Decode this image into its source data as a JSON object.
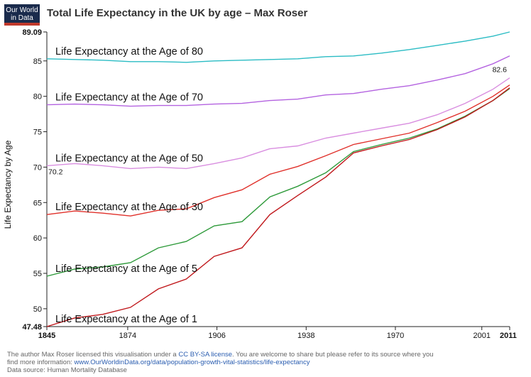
{
  "header": {
    "logo_line1": "Our World",
    "logo_line2": "in Data",
    "title": "Total Life Expectancy in the UK by age – Max Roser"
  },
  "footer": {
    "line1_prefix": "The author Max Roser licensed this visualisation under a ",
    "license_link": "CC BY-SA license",
    "line1_suffix": ". You are welcome to share but please refer to its source where you",
    "line2_prefix": "find more information: ",
    "source_link": "www.OurWorldinData.org/data/population-growth-vital-statistics/life-expectancy",
    "line3": "Data source: Human Mortality Database"
  },
  "colors": {
    "age80": "#2bbcc4",
    "age70": "#b463e0",
    "age50": "#d98ee0",
    "age30": "#e0302a",
    "age5": "#2e9a3a",
    "age1": "#c0181c"
  },
  "chart_data": {
    "type": "line",
    "title": "Total Life Expectancy in the UK by age – Max Roser",
    "xlabel": "",
    "ylabel": "Life Expectancy by Age",
    "xlim": [
      1845,
      2011
    ],
    "ylim": [
      47.48,
      89.09
    ],
    "x_ticks": [
      "1845",
      "1874",
      "1906",
      "1938",
      "1970",
      "2001",
      "2011"
    ],
    "y_ticks": [
      "47.48",
      "50",
      "55",
      "60",
      "65",
      "70",
      "75",
      "80",
      "85",
      "89.09"
    ],
    "grid": false,
    "annotations": [
      {
        "text": "82.6",
        "x": 2011,
        "y": 82.6
      },
      {
        "text": "70.2",
        "x": 1845,
        "y": 70.2
      }
    ],
    "series": [
      {
        "name": "Life Expectancy at the Age of 80",
        "color_key": "age80",
        "x": [
          1845,
          1855,
          1865,
          1875,
          1885,
          1895,
          1905,
          1915,
          1925,
          1935,
          1945,
          1955,
          1965,
          1975,
          1985,
          1995,
          2005,
          2011
        ],
        "y": [
          85.3,
          85.2,
          85.1,
          84.9,
          84.9,
          84.8,
          85.0,
          85.1,
          85.2,
          85.3,
          85.6,
          85.7,
          86.1,
          86.6,
          87.2,
          87.8,
          88.5,
          89.09
        ]
      },
      {
        "name": "Life Expectancy at the Age of 70",
        "color_key": "age70",
        "x": [
          1845,
          1855,
          1865,
          1875,
          1885,
          1895,
          1905,
          1915,
          1925,
          1935,
          1945,
          1955,
          1965,
          1975,
          1985,
          1995,
          2005,
          2011
        ],
        "y": [
          78.8,
          78.9,
          78.8,
          78.6,
          78.7,
          78.7,
          78.9,
          79.0,
          79.4,
          79.6,
          80.2,
          80.4,
          81.0,
          81.5,
          82.3,
          83.2,
          84.6,
          85.7
        ]
      },
      {
        "name": "Life Expectancy at the Age of 50",
        "color_key": "age50",
        "x": [
          1845,
          1855,
          1865,
          1875,
          1885,
          1895,
          1905,
          1915,
          1925,
          1935,
          1945,
          1955,
          1965,
          1975,
          1985,
          1995,
          2005,
          2011
        ],
        "y": [
          70.2,
          70.5,
          70.2,
          69.8,
          70.0,
          69.8,
          70.5,
          71.3,
          72.6,
          73.0,
          74.1,
          74.8,
          75.5,
          76.2,
          77.4,
          79.0,
          81.0,
          82.6
        ]
      },
      {
        "name": "Life Expectancy at the Age of 30",
        "color_key": "age30",
        "x": [
          1845,
          1855,
          1865,
          1875,
          1885,
          1895,
          1905,
          1915,
          1925,
          1935,
          1945,
          1955,
          1965,
          1975,
          1985,
          1995,
          2005,
          2011
        ],
        "y": [
          63.3,
          63.8,
          63.5,
          63.1,
          63.9,
          64.1,
          65.7,
          66.8,
          69.0,
          70.1,
          71.6,
          73.2,
          74.0,
          74.8,
          76.3,
          77.9,
          80.0,
          81.6
        ]
      },
      {
        "name": "Life Expectancy at the Age of 5",
        "color_key": "age5",
        "x": [
          1845,
          1855,
          1865,
          1875,
          1885,
          1895,
          1905,
          1915,
          1925,
          1935,
          1945,
          1955,
          1965,
          1975,
          1985,
          1995,
          2005,
          2011
        ],
        "y": [
          54.6,
          55.6,
          55.9,
          56.5,
          58.6,
          59.5,
          61.7,
          62.3,
          65.8,
          67.3,
          69.2,
          72.2,
          73.2,
          74.1,
          75.4,
          77.2,
          79.4,
          81.1
        ]
      },
      {
        "name": "Life Expectancy at the Age of 1",
        "color_key": "age1",
        "x": [
          1845,
          1855,
          1865,
          1875,
          1885,
          1895,
          1905,
          1915,
          1925,
          1935,
          1945,
          1955,
          1965,
          1975,
          1985,
          1995,
          2005,
          2011
        ],
        "y": [
          47.48,
          48.7,
          49.2,
          50.2,
          52.8,
          54.2,
          57.4,
          58.6,
          63.3,
          66.0,
          68.6,
          72.0,
          73.0,
          73.9,
          75.3,
          77.1,
          79.4,
          81.2
        ]
      }
    ]
  }
}
